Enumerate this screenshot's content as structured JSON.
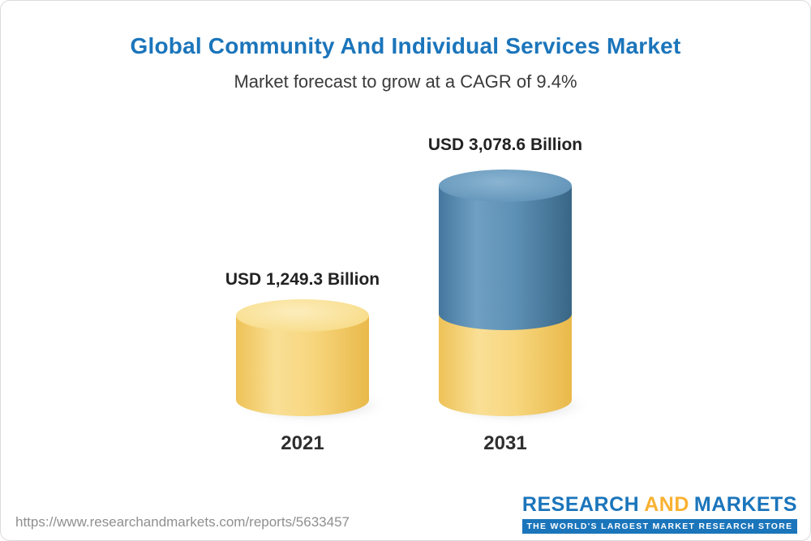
{
  "page": {
    "title": "Global Community And Individual Services Market",
    "subtitle": "Market forecast to grow at a CAGR of 9.4%"
  },
  "chart_data": {
    "type": "bar",
    "subtype": "3d-cylinder",
    "categories": [
      "2021",
      "2031"
    ],
    "values": [
      1249.3,
      3078.6
    ],
    "value_labels": [
      "USD 1,249.3 Billion",
      "USD 3,078.6 Billion"
    ],
    "unit": "USD Billion",
    "cagr_percent": 9.4,
    "title": "Global Community And Individual Services Market",
    "subtitle": "Market forecast to grow at a CAGR of 9.4%",
    "xlabel": "",
    "ylabel": "",
    "grid": false,
    "legend": "none",
    "axes_shown": false,
    "notes": "2031 cylinder is stacked: yellow base segment represents the 2021 value, blue upper segment represents growth to 2031",
    "colors": {
      "bar_2021": "#f7d67e",
      "bar_2031_base_segment": "#f7d67e",
      "bar_2031_growth_segment": "#5d90b5",
      "title_text": "#1b75bb",
      "value_label_text": "#222222"
    }
  },
  "footer": {
    "url": "https://www.researchandmarkets.com/reports/5633457",
    "logo": {
      "line1_part1": "RESEARCH",
      "line1_part2": "AND",
      "line1_part3": "MARKETS",
      "tagline": "THE WORLD'S LARGEST MARKET RESEARCH STORE",
      "brand_blue": "#1b75bb",
      "brand_yellow": "#f9b233"
    }
  }
}
